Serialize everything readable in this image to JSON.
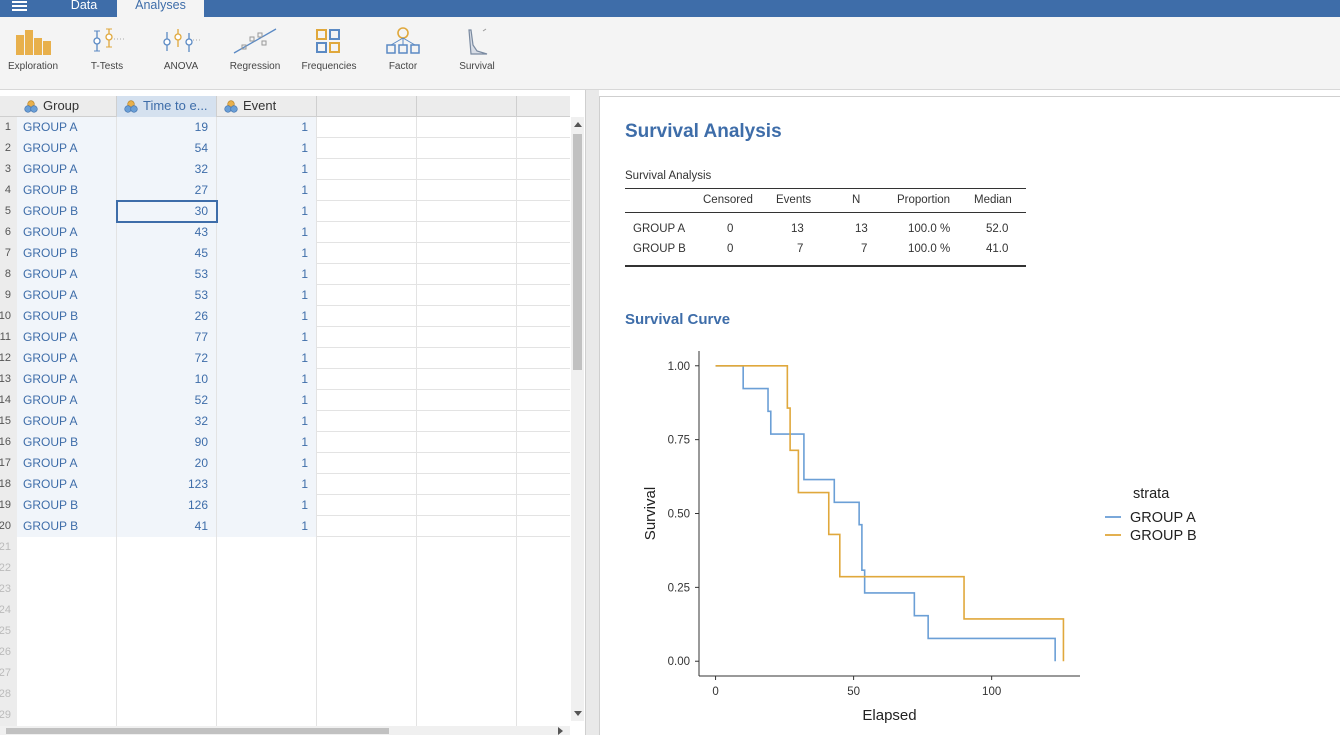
{
  "menu": {
    "tabs": [
      {
        "label": "Data"
      },
      {
        "label": "Analyses"
      }
    ]
  },
  "ribbon": {
    "buttons": [
      {
        "label": "Exploration",
        "icon": "exploration-icon"
      },
      {
        "label": "T-Tests",
        "icon": "t-tests-icon"
      },
      {
        "label": "ANOVA",
        "icon": "anova-icon"
      },
      {
        "label": "Regression",
        "icon": "regression-icon"
      },
      {
        "label": "Frequencies",
        "icon": "frequencies-icon"
      },
      {
        "label": "Factor",
        "icon": "factor-icon"
      },
      {
        "label": "Survival",
        "icon": "survival-icon"
      }
    ]
  },
  "spreadsheet": {
    "columns": [
      {
        "label": "Group"
      },
      {
        "label": "Time to e..."
      },
      {
        "label": "Event"
      }
    ],
    "rows": [
      {
        "n": "1",
        "group": "GROUP A",
        "time": "19",
        "event": "1"
      },
      {
        "n": "2",
        "group": "GROUP A",
        "time": "54",
        "event": "1"
      },
      {
        "n": "3",
        "group": "GROUP A",
        "time": "32",
        "event": "1"
      },
      {
        "n": "4",
        "group": "GROUP B",
        "time": "27",
        "event": "1"
      },
      {
        "n": "5",
        "group": "GROUP B",
        "time": "30",
        "event": "1"
      },
      {
        "n": "6",
        "group": "GROUP A",
        "time": "43",
        "event": "1"
      },
      {
        "n": "7",
        "group": "GROUP B",
        "time": "45",
        "event": "1"
      },
      {
        "n": "8",
        "group": "GROUP A",
        "time": "53",
        "event": "1"
      },
      {
        "n": "9",
        "group": "GROUP A",
        "time": "53",
        "event": "1"
      },
      {
        "n": "10",
        "group": "GROUP B",
        "time": "26",
        "event": "1"
      },
      {
        "n": "11",
        "group": "GROUP A",
        "time": "77",
        "event": "1"
      },
      {
        "n": "12",
        "group": "GROUP A",
        "time": "72",
        "event": "1"
      },
      {
        "n": "13",
        "group": "GROUP A",
        "time": "10",
        "event": "1"
      },
      {
        "n": "14",
        "group": "GROUP A",
        "time": "52",
        "event": "1"
      },
      {
        "n": "15",
        "group": "GROUP A",
        "time": "32",
        "event": "1"
      },
      {
        "n": "16",
        "group": "GROUP B",
        "time": "90",
        "event": "1"
      },
      {
        "n": "17",
        "group": "GROUP A",
        "time": "20",
        "event": "1"
      },
      {
        "n": "18",
        "group": "GROUP A",
        "time": "123",
        "event": "1"
      },
      {
        "n": "19",
        "group": "GROUP B",
        "time": "126",
        "event": "1"
      },
      {
        "n": "20",
        "group": "GROUP B",
        "time": "41",
        "event": "1"
      }
    ],
    "empty_rows": [
      "21",
      "22",
      "23",
      "24",
      "25",
      "26",
      "27",
      "28",
      "29"
    ]
  },
  "results": {
    "title": "Survival Analysis",
    "table": {
      "caption": "Survival Analysis",
      "headers": [
        "Censored",
        "Events",
        "N",
        "Proportion",
        "Median"
      ],
      "rows": [
        {
          "group": "GROUP A",
          "censored": "0",
          "events": "13",
          "n": "13",
          "proportion": "100.0 %",
          "median": "52.0"
        },
        {
          "group": "GROUP B",
          "censored": "0",
          "events": "7",
          "n": "7",
          "proportion": "100.0 %",
          "median": "41.0"
        }
      ]
    },
    "curve_title": "Survival Curve"
  },
  "colors": {
    "accent": "#3e6da9",
    "group_a": "#6b9fd6",
    "group_b": "#e0a83c"
  },
  "chart_data": {
    "type": "line",
    "step": true,
    "xlabel": "Elapsed",
    "ylabel": "Survival",
    "xlim": [
      0,
      126
    ],
    "ylim": [
      0,
      1
    ],
    "x_ticks": [
      0,
      50,
      100
    ],
    "y_ticks": [
      0.0,
      0.25,
      0.5,
      0.75,
      1.0
    ],
    "x_tick_labels": [
      "0",
      "50",
      "100"
    ],
    "y_tick_labels": [
      "0.00",
      "0.25",
      "0.50",
      "0.75",
      "1.00"
    ],
    "legend": {
      "title": "strata",
      "position": "right"
    },
    "series": [
      {
        "name": "GROUP A",
        "color": "#6b9fd6",
        "x": [
          0,
          10,
          19,
          20,
          32,
          43,
          52,
          53,
          54,
          72,
          77,
          123
        ],
        "y": [
          1.0,
          0.923,
          0.846,
          0.769,
          0.615,
          0.538,
          0.462,
          0.308,
          0.231,
          0.154,
          0.077,
          0.0
        ]
      },
      {
        "name": "GROUP B",
        "color": "#e0a83c",
        "x": [
          0,
          26,
          27,
          30,
          41,
          45,
          90,
          126
        ],
        "y": [
          1.0,
          0.857,
          0.714,
          0.571,
          0.429,
          0.286,
          0.143,
          0.0
        ]
      }
    ]
  }
}
